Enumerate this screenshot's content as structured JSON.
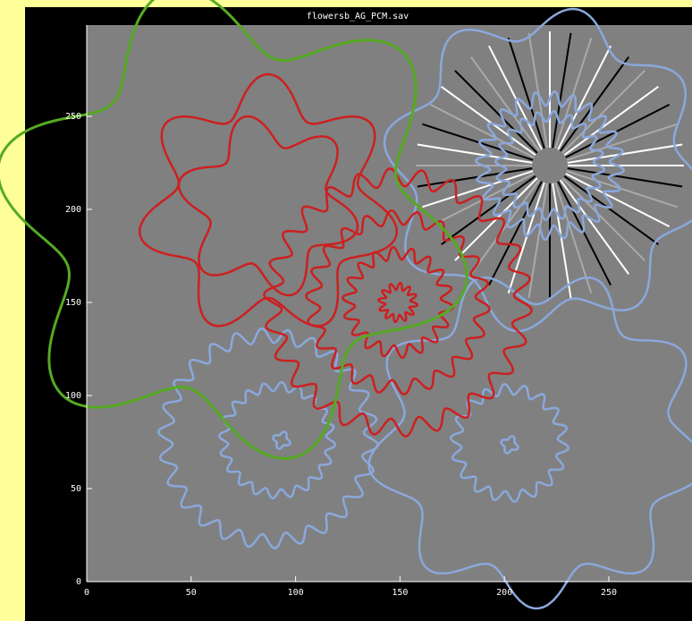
{
  "window": {
    "title": "flowersb_AG_PCM.sav",
    "xticks": [
      0,
      50,
      100,
      150,
      200,
      250
    ],
    "yticks": [
      0,
      50,
      100,
      150,
      200,
      250
    ]
  }
}
